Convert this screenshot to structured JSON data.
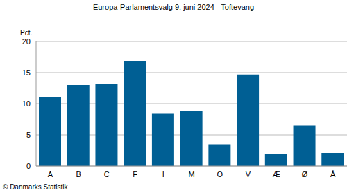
{
  "chart_data": {
    "type": "bar",
    "title": "Europa-Parlamentsvalg 9. juni 2024 - Toftevang",
    "y_label": "Pct.",
    "source": "© Danmarks Statistik",
    "categories": [
      "A",
      "B",
      "C",
      "F",
      "I",
      "M",
      "O",
      "V",
      "Æ",
      "Ø",
      "Å"
    ],
    "values": [
      11.1,
      13.0,
      13.2,
      16.9,
      8.4,
      8.8,
      3.5,
      14.7,
      2.0,
      6.5,
      2.1
    ],
    "color": "#005f94",
    "ylim": [
      0,
      20
    ],
    "yticks": [
      0,
      5,
      10,
      15,
      20
    ],
    "grid": true
  }
}
